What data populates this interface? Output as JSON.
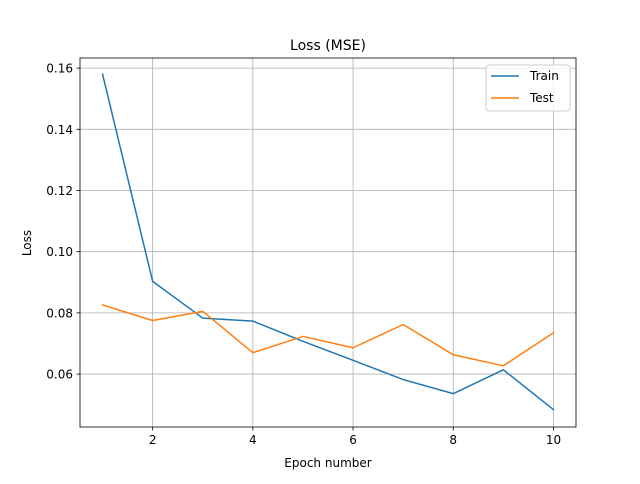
{
  "chart_data": {
    "type": "line",
    "title": "Loss (MSE)",
    "xlabel": "Epoch number",
    "ylabel": "Loss",
    "x": [
      1,
      2,
      3,
      4,
      5,
      6,
      7,
      8,
      9,
      10
    ],
    "xlim": [
      0.55,
      10.45
    ],
    "ylim": [
      0.0427,
      0.1633
    ],
    "xticks": [
      2,
      4,
      6,
      8,
      10
    ],
    "xtick_labels": [
      "2",
      "4",
      "6",
      "8",
      "10"
    ],
    "yticks": [
      0.06,
      0.08,
      0.1,
      0.12,
      0.14,
      0.16
    ],
    "ytick_labels": [
      "0.06",
      "0.08",
      "0.10",
      "0.12",
      "0.14",
      "0.16"
    ],
    "grid": true,
    "legend_position": "top-right",
    "series": [
      {
        "name": "Train",
        "color": "#1f77b4",
        "values": [
          0.158,
          0.0903,
          0.0783,
          0.0773,
          0.0707,
          0.0645,
          0.0582,
          0.0536,
          0.0614,
          0.0484
        ]
      },
      {
        "name": "Test",
        "color": "#ff7f0e",
        "values": [
          0.0826,
          0.0775,
          0.0805,
          0.067,
          0.0723,
          0.0686,
          0.0762,
          0.0663,
          0.0627,
          0.0735
        ]
      }
    ]
  }
}
